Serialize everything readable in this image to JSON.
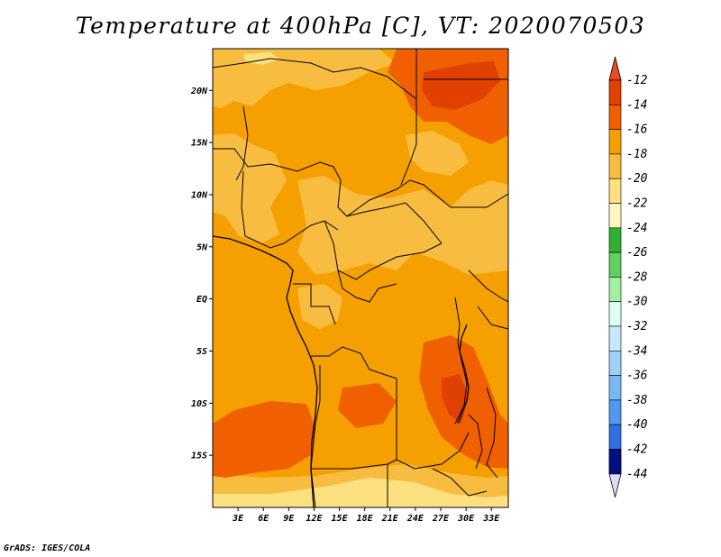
{
  "title": "Temperature at 400hPa [C], VT: 2020070503",
  "credit": "GrADS: IGES/COLA",
  "map": {
    "lon_range": [
      0,
      35
    ],
    "lat_range": [
      -20,
      24
    ],
    "lat_ticks": [
      {
        "value": 20,
        "label": "20N"
      },
      {
        "value": 15,
        "label": "15N"
      },
      {
        "value": 10,
        "label": "10N"
      },
      {
        "value": 5,
        "label": "5N"
      },
      {
        "value": 0,
        "label": "EQ"
      },
      {
        "value": -5,
        "label": "5S"
      },
      {
        "value": -10,
        "label": "10S"
      },
      {
        "value": -15,
        "label": "15S"
      }
    ],
    "lon_ticks": [
      {
        "value": 3,
        "label": "3E"
      },
      {
        "value": 6,
        "label": "6E"
      },
      {
        "value": 9,
        "label": "9E"
      },
      {
        "value": 12,
        "label": "12E"
      },
      {
        "value": 15,
        "label": "15E"
      },
      {
        "value": 18,
        "label": "18E"
      },
      {
        "value": 21,
        "label": "21E"
      },
      {
        "value": 24,
        "label": "24E"
      },
      {
        "value": 27,
        "label": "27E"
      },
      {
        "value": 30,
        "label": "30E"
      },
      {
        "value": 33,
        "label": "33E"
      }
    ]
  },
  "colorbar": {
    "levels": [
      {
        "label": "-12",
        "color": "#e04000"
      },
      {
        "label": "-14",
        "color": "#f06000"
      },
      {
        "label": "-16",
        "color": "#f5a000"
      },
      {
        "label": "-18",
        "color": "#f8bd40"
      },
      {
        "label": "-20",
        "color": "#fde080"
      },
      {
        "label": "-22",
        "color": "#fef8c0"
      },
      {
        "label": "-24",
        "color": "#30b030"
      },
      {
        "label": "-26",
        "color": "#60d060"
      },
      {
        "label": "-28",
        "color": "#a0f0a0"
      },
      {
        "label": "-30",
        "color": "#e0fff0"
      },
      {
        "label": "-32",
        "color": "#c8e8fc"
      },
      {
        "label": "-34",
        "color": "#a0d0f8"
      },
      {
        "label": "-36",
        "color": "#78b8f5"
      },
      {
        "label": "-38",
        "color": "#5098f0"
      },
      {
        "label": "-40",
        "color": "#3070e0"
      },
      {
        "label": "-42",
        "color": "#1050d0"
      },
      {
        "label": "-44",
        "color": "#0830b0"
      }
    ],
    "top_color": "#f04820",
    "bottom_color": "#dcdcf8",
    "bottom_segment_color": "#001080"
  }
}
